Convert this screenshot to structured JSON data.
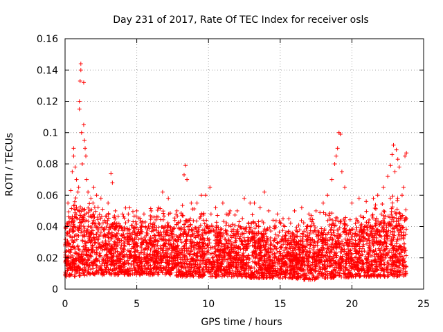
{
  "chart_data": {
    "type": "scatter",
    "title": "Day 231 of 2017, Rate Of TEC Index for receiver osls",
    "xlabel": "GPS time / hours",
    "ylabel": "ROTI / TECUs",
    "xlim": [
      0,
      25
    ],
    "ylim": [
      0,
      0.16
    ],
    "xticks": [
      0,
      5,
      10,
      15,
      20,
      25
    ],
    "xtick_labels": [
      "0",
      "5",
      "10",
      "15",
      "20",
      "25"
    ],
    "yticks": [
      0,
      0.02,
      0.04,
      0.06,
      0.08,
      0.1,
      0.12,
      0.14,
      0.16
    ],
    "ytick_labels": [
      "0",
      "0.02",
      "0.04",
      "0.06",
      "0.08",
      "0.1",
      "0.12",
      "0.14",
      "0.16"
    ],
    "grid": true,
    "marker": "+",
    "color": "#ff0000",
    "data_extent_hours": [
      0,
      23.8
    ],
    "series": [
      {
        "name": "ROTI",
        "points": [
          [
            0.2,
            0.055
          ],
          [
            0.4,
            0.063
          ],
          [
            0.5,
            0.075
          ],
          [
            0.6,
            0.085
          ],
          [
            0.6,
            0.09
          ],
          [
            0.7,
            0.078
          ],
          [
            0.8,
            0.07
          ],
          [
            0.9,
            0.062
          ],
          [
            1.0,
            0.12
          ],
          [
            1.0,
            0.115
          ],
          [
            1.05,
            0.133
          ],
          [
            1.1,
            0.14
          ],
          [
            1.1,
            0.144
          ],
          [
            1.15,
            0.1
          ],
          [
            1.2,
            0.08
          ],
          [
            1.3,
            0.132
          ],
          [
            1.3,
            0.105
          ],
          [
            1.35,
            0.095
          ],
          [
            1.4,
            0.09
          ],
          [
            1.45,
            0.085
          ],
          [
            1.5,
            0.07
          ],
          [
            1.6,
            0.062
          ],
          [
            1.8,
            0.058
          ],
          [
            2.0,
            0.065
          ],
          [
            2.2,
            0.06
          ],
          [
            2.5,
            0.058
          ],
          [
            3.0,
            0.055
          ],
          [
            3.2,
            0.074
          ],
          [
            3.3,
            0.068
          ],
          [
            3.5,
            0.05
          ],
          [
            4.0,
            0.048
          ],
          [
            4.5,
            0.052
          ],
          [
            5.0,
            0.05
          ],
          [
            5.5,
            0.048
          ],
          [
            6.0,
            0.05
          ],
          [
            6.5,
            0.052
          ],
          [
            6.8,
            0.062
          ],
          [
            7.2,
            0.058
          ],
          [
            7.8,
            0.05
          ],
          [
            8.3,
            0.073
          ],
          [
            8.4,
            0.079
          ],
          [
            8.5,
            0.07
          ],
          [
            8.8,
            0.055
          ],
          [
            9.2,
            0.055
          ],
          [
            9.5,
            0.06
          ],
          [
            9.8,
            0.06
          ],
          [
            10.1,
            0.065
          ],
          [
            10.5,
            0.052
          ],
          [
            11.0,
            0.055
          ],
          [
            11.5,
            0.05
          ],
          [
            12.0,
            0.05
          ],
          [
            12.5,
            0.058
          ],
          [
            12.9,
            0.055
          ],
          [
            13.2,
            0.055
          ],
          [
            13.6,
            0.052
          ],
          [
            13.9,
            0.062
          ],
          [
            14.2,
            0.05
          ],
          [
            14.8,
            0.048
          ],
          [
            15.2,
            0.045
          ],
          [
            15.6,
            0.045
          ],
          [
            16.0,
            0.05
          ],
          [
            16.5,
            0.052
          ],
          [
            17.0,
            0.048
          ],
          [
            17.5,
            0.05
          ],
          [
            18.0,
            0.055
          ],
          [
            18.3,
            0.06
          ],
          [
            18.6,
            0.07
          ],
          [
            18.8,
            0.08
          ],
          [
            18.9,
            0.085
          ],
          [
            19.0,
            0.09
          ],
          [
            19.1,
            0.1
          ],
          [
            19.2,
            0.099
          ],
          [
            19.3,
            0.075
          ],
          [
            19.5,
            0.065
          ],
          [
            20.0,
            0.055
          ],
          [
            20.5,
            0.058
          ],
          [
            21.0,
            0.056
          ],
          [
            21.5,
            0.058
          ],
          [
            21.8,
            0.06
          ],
          [
            22.2,
            0.065
          ],
          [
            22.5,
            0.072
          ],
          [
            22.7,
            0.079
          ],
          [
            22.8,
            0.086
          ],
          [
            22.9,
            0.092
          ],
          [
            23.0,
            0.075
          ],
          [
            23.1,
            0.089
          ],
          [
            23.2,
            0.083
          ],
          [
            23.3,
            0.078
          ],
          [
            23.5,
            0.06
          ],
          [
            23.6,
            0.065
          ],
          [
            23.7,
            0.085
          ],
          [
            23.8,
            0.087
          ]
        ],
        "envelope": {
          "x": [
            0,
            0.5,
            1.0,
            1.5,
            2.0,
            2.5,
            3.0,
            3.5,
            4.0,
            4.5,
            5.0,
            5.5,
            6.0,
            6.5,
            7.0,
            7.5,
            8.0,
            8.5,
            9.0,
            9.5,
            10.0,
            10.5,
            11.0,
            11.5,
            12.0,
            12.5,
            13.0,
            13.5,
            14.0,
            14.5,
            15.0,
            15.5,
            16.0,
            16.5,
            17.0,
            17.5,
            18.0,
            18.5,
            19.0,
            19.5,
            20.0,
            20.5,
            21.0,
            21.5,
            22.0,
            22.5,
            23.0,
            23.5,
            23.8
          ],
          "low": [
            0.008,
            0.008,
            0.008,
            0.009,
            0.009,
            0.009,
            0.009,
            0.009,
            0.009,
            0.009,
            0.009,
            0.009,
            0.009,
            0.009,
            0.009,
            0.009,
            0.008,
            0.008,
            0.008,
            0.008,
            0.008,
            0.008,
            0.008,
            0.008,
            0.008,
            0.008,
            0.007,
            0.007,
            0.007,
            0.007,
            0.007,
            0.007,
            0.007,
            0.006,
            0.006,
            0.006,
            0.007,
            0.007,
            0.007,
            0.007,
            0.008,
            0.008,
            0.008,
            0.008,
            0.008,
            0.008,
            0.008,
            0.008,
            0.008
          ],
          "high": [
            0.042,
            0.048,
            0.055,
            0.05,
            0.047,
            0.044,
            0.045,
            0.042,
            0.04,
            0.04,
            0.042,
            0.04,
            0.04,
            0.042,
            0.04,
            0.04,
            0.042,
            0.045,
            0.042,
            0.04,
            0.042,
            0.04,
            0.038,
            0.038,
            0.038,
            0.04,
            0.038,
            0.036,
            0.036,
            0.035,
            0.034,
            0.034,
            0.035,
            0.036,
            0.036,
            0.038,
            0.04,
            0.042,
            0.045,
            0.042,
            0.04,
            0.04,
            0.04,
            0.042,
            0.045,
            0.048,
            0.05,
            0.048,
            0.045
          ]
        }
      }
    ]
  }
}
